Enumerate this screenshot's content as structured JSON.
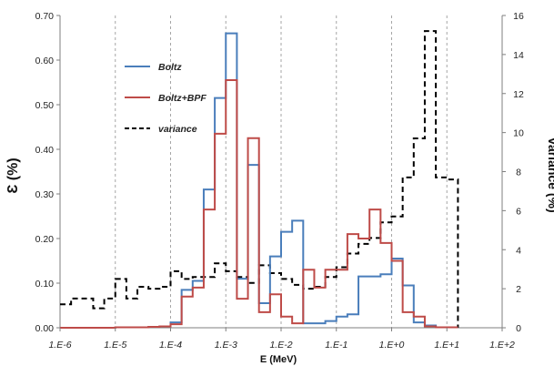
{
  "chart_data": {
    "type": "line",
    "xlabel": "E (MeV)",
    "ylabel": "Ɛ (%)",
    "y2label": "Variance (%)",
    "xscale": "log",
    "xlim": [
      1e-06,
      100
    ],
    "ylim": [
      0,
      0.7
    ],
    "y2lim": [
      0,
      16
    ],
    "grid": "vertical dashed",
    "legend_position": "upper-left",
    "x_tick_labels": [
      "1.E-6",
      "1.E-5",
      "1.E-4",
      "1.E-3",
      "1.E-2",
      "1.E-1",
      "1.E+0",
      "1.E+1",
      "1.E+2"
    ],
    "y_tick_labels": [
      "0.00",
      "0.10",
      "0.20",
      "0.30",
      "0.40",
      "0.50",
      "0.60",
      "0.70"
    ],
    "y2_tick_labels": [
      "0",
      "2",
      "4",
      "6",
      "8",
      "10",
      "12",
      "14",
      "16"
    ],
    "bin_edges_log10": [
      -6,
      -5.8,
      -5.6,
      -5.4,
      -5.2,
      -5,
      -4.8,
      -4.6,
      -4.4,
      -4.2,
      -4,
      -3.8,
      -3.6,
      -3.4,
      -3.2,
      -3,
      -2.8,
      -2.6,
      -2.4,
      -2.2,
      -2,
      -1.8,
      -1.6,
      -1.4,
      -1.2,
      -1,
      -0.8,
      -0.6,
      -0.4,
      -0.2,
      0,
      0.2,
      0.4,
      0.6,
      0.8,
      1,
      1.2
    ],
    "series": [
      {
        "name": "Boltz",
        "axis": "left",
        "color": "#4a7ebb",
        "values": [
          0,
          0,
          0,
          0,
          0,
          0.001,
          0.001,
          0.001,
          0.002,
          0.003,
          0.012,
          0.085,
          0.105,
          0.31,
          0.515,
          0.66,
          0.11,
          0.365,
          0.055,
          0.16,
          0.215,
          0.24,
          0.01,
          0.01,
          0.015,
          0.025,
          0.03,
          0.115,
          0.115,
          0.12,
          0.155,
          0.095,
          0.012,
          0.005,
          0.001,
          0.001
        ]
      },
      {
        "name": "Boltz+BPF",
        "axis": "left",
        "color": "#be4b48",
        "values": [
          0,
          0,
          0,
          0,
          0,
          0.001,
          0.001,
          0.001,
          0.002,
          0.003,
          0.008,
          0.07,
          0.09,
          0.265,
          0.435,
          0.555,
          0.065,
          0.425,
          0.035,
          0.075,
          0.025,
          0.01,
          0.13,
          0.09,
          0.13,
          0.13,
          0.21,
          0.2,
          0.265,
          0.19,
          0.15,
          0.035,
          0.025,
          0.003,
          0.001,
          0.001
        ]
      },
      {
        "name": "variance",
        "axis": "right",
        "color": "#000000",
        "values": [
          1.2,
          1.5,
          1.5,
          1.0,
          1.5,
          2.5,
          1.5,
          2.1,
          2.0,
          2.1,
          2.9,
          2.5,
          2.6,
          2.6,
          3.3,
          2.9,
          2.6,
          2.3,
          3.2,
          2.8,
          2.5,
          2.2,
          2.0,
          2.1,
          2.6,
          3.1,
          3.8,
          4.3,
          4.6,
          5.4,
          5.7,
          7.7,
          9.7,
          15.2,
          7.7,
          7.6
        ]
      }
    ]
  }
}
